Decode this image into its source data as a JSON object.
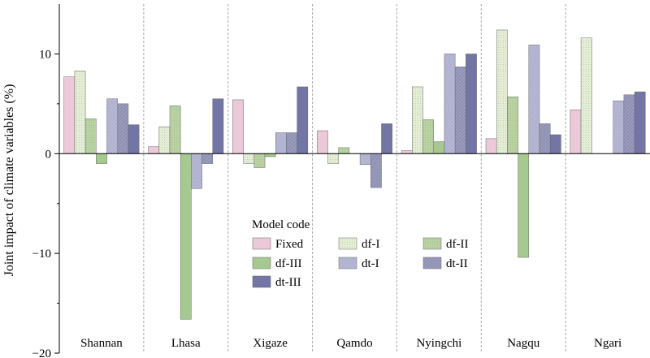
{
  "chart_data": {
    "type": "bar",
    "title": "",
    "xlabel": "",
    "ylabel": "Joint impact of climate variables (%)",
    "ylim": [
      -20,
      15
    ],
    "yticks": [
      -20,
      -10,
      0,
      10
    ],
    "ytick_labels": [
      "−20",
      "−10",
      "0",
      "10"
    ],
    "grid": false,
    "categories": [
      "Shannan",
      "Lhasa",
      "Xigaze",
      "Qamdo",
      "Nyingchi",
      "Nagqu",
      "Ngari"
    ],
    "legend": {
      "title": "Model code",
      "placement": "lower-center"
    },
    "series": [
      {
        "name": "Fixed",
        "color": "#ecc9d8",
        "pattern": "none",
        "values": [
          7.7,
          0.7,
          5.4,
          2.3,
          0.3,
          1.5,
          4.4
        ]
      },
      {
        "name": "df-I",
        "color": "#e4eed6",
        "pattern": "dots",
        "values": [
          8.3,
          2.7,
          -1.0,
          -1.0,
          6.7,
          12.4,
          11.6
        ]
      },
      {
        "name": "df-II",
        "color": "#b9d2a2",
        "pattern": "dots",
        "values": [
          3.5,
          4.8,
          -1.4,
          0.6,
          3.4,
          5.7,
          0.0
        ]
      },
      {
        "name": "df-III",
        "color": "#a6c98f",
        "pattern": "none",
        "values": [
          -1.0,
          -16.6,
          -0.3,
          0.0,
          1.2,
          -10.4,
          0.0
        ]
      },
      {
        "name": "dt-I",
        "color": "#aeb0cf",
        "pattern": "hatch",
        "values": [
          5.5,
          -3.5,
          2.1,
          -1.1,
          10.0,
          10.9,
          5.3
        ]
      },
      {
        "name": "dt-II",
        "color": "#8e90b4",
        "pattern": "hatch",
        "values": [
          5.0,
          -1.0,
          2.1,
          -3.4,
          8.7,
          3.0,
          5.9
        ]
      },
      {
        "name": "dt-III",
        "color": "#7375a5",
        "pattern": "none",
        "values": [
          2.9,
          5.5,
          6.7,
          3.0,
          10.0,
          1.9,
          6.2
        ]
      }
    ]
  }
}
